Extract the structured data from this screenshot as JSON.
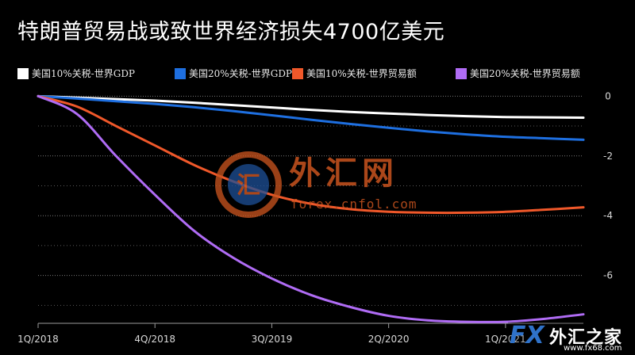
{
  "chart_data": {
    "type": "line",
    "title": "特朗普贸易战或致世界经济损失4700亿美元",
    "x_ticks": [
      "1Q/2018",
      "4Q/2018",
      "3Q/2019",
      "2Q/2020",
      "1Q/2021"
    ],
    "x": [
      "1Q/2018",
      "2Q/2018",
      "3Q/2018",
      "4Q/2018",
      "1Q/2019",
      "2Q/2019",
      "3Q/2019",
      "4Q/2019",
      "1Q/2020",
      "2Q/2020",
      "3Q/2020",
      "4Q/2020",
      "1Q/2021",
      "2Q/2021",
      "3Q/2021"
    ],
    "y_ticks": [
      0,
      -2,
      -4,
      -6
    ],
    "ylim": [
      -7.6,
      0.3
    ],
    "grid": true,
    "legend_position": "top",
    "series": [
      {
        "name": "美国10%关税-世界GDP",
        "color": "#ffffff",
        "values": [
          0,
          -0.05,
          -0.1,
          -0.15,
          -0.22,
          -0.3,
          -0.38,
          -0.46,
          -0.53,
          -0.58,
          -0.63,
          -0.67,
          -0.7,
          -0.71,
          -0.72
        ]
      },
      {
        "name": "美国20%关税-世界GDP",
        "color": "#1e6fe0",
        "values": [
          0,
          -0.08,
          -0.17,
          -0.26,
          -0.37,
          -0.5,
          -0.64,
          -0.79,
          -0.93,
          -1.06,
          -1.18,
          -1.28,
          -1.36,
          -1.41,
          -1.46
        ]
      },
      {
        "name": "美国10%关税-世界贸易额",
        "color": "#f0582a",
        "values": [
          0,
          -0.35,
          -1.0,
          -1.65,
          -2.3,
          -2.85,
          -3.3,
          -3.6,
          -3.78,
          -3.87,
          -3.9,
          -3.9,
          -3.87,
          -3.8,
          -3.72
        ]
      },
      {
        "name": "美国20%关税-世界贸易额",
        "color": "#b06cf5",
        "values": [
          0,
          -0.6,
          -2.0,
          -3.3,
          -4.5,
          -5.4,
          -6.1,
          -6.65,
          -7.05,
          -7.35,
          -7.5,
          -7.55,
          -7.55,
          -7.45,
          -7.3
        ]
      }
    ]
  },
  "watermarks": {
    "center_text": "外汇网",
    "center_url": "forex.cnfol.com",
    "corner_fx": "FX",
    "corner_text": "外汇之家",
    "corner_url": "www.fx68.com"
  }
}
